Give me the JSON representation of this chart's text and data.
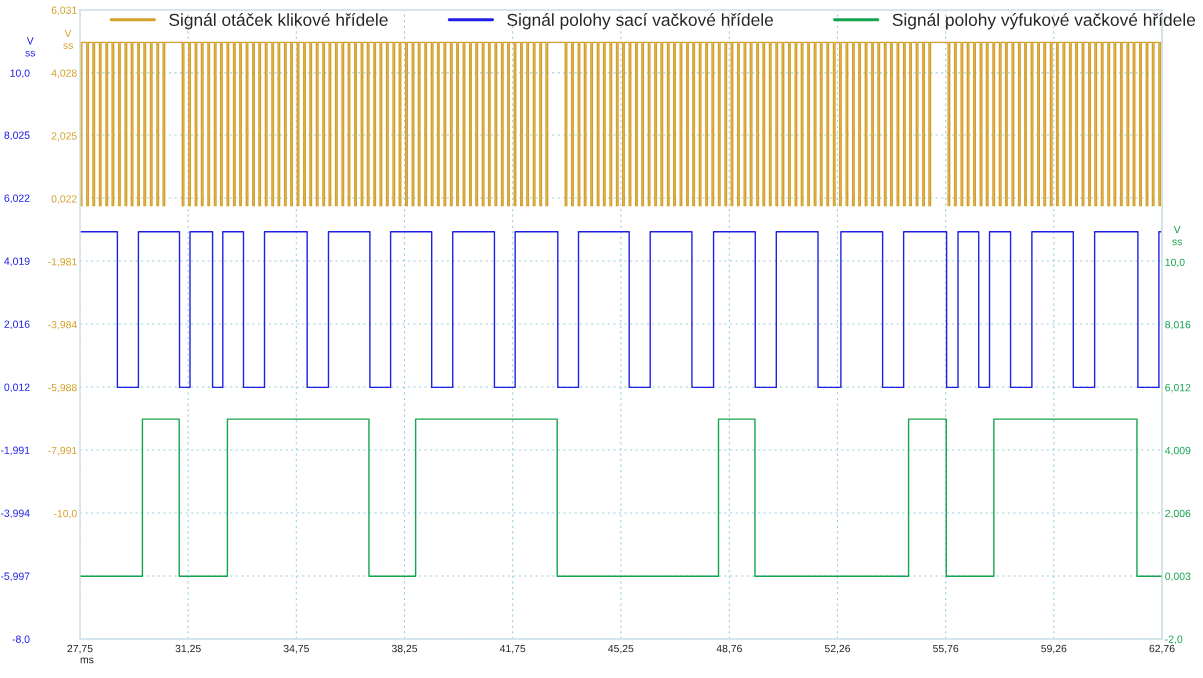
{
  "chart_data": {
    "type": "step",
    "legend": "top",
    "grid": true,
    "xlabel": "ms",
    "ylabel": "V\nss",
    "y2label": "V\nss",
    "y3label": "V\nss",
    "xlim": [
      27.75,
      62.76
    ],
    "xticks": [
      {
        "value": 27.75,
        "label": "27,75"
      },
      {
        "value": 31.25,
        "label": "31,25"
      },
      {
        "value": 34.75,
        "label": "34,75"
      },
      {
        "value": 38.25,
        "label": "38,25"
      },
      {
        "value": 41.75,
        "label": "41,75"
      },
      {
        "value": 45.25,
        "label": "45,25"
      },
      {
        "value": 48.76,
        "label": "48,76"
      },
      {
        "value": 52.26,
        "label": "52,26"
      },
      {
        "value": 55.76,
        "label": "55,76"
      },
      {
        "value": 59.26,
        "label": "59,26"
      },
      {
        "value": 62.76,
        "label": "62,76"
      }
    ],
    "ylim": [
      -8.0,
      12.0
    ],
    "yticks": [
      {
        "value": 10.0,
        "label": "10,0"
      },
      {
        "value": 8.025,
        "label": "8,025"
      },
      {
        "value": 6.022,
        "label": "6,022"
      },
      {
        "value": 4.019,
        "label": "4,019"
      },
      {
        "value": 2.016,
        "label": "2,016"
      },
      {
        "value": 0.012,
        "label": "0,012"
      },
      {
        "value": -1.991,
        "label": "-1,991"
      },
      {
        "value": -3.994,
        "label": "-3,994"
      },
      {
        "value": -5.997,
        "label": "-5,997"
      },
      {
        "value": -8.0,
        "label": "-8,0"
      }
    ],
    "y2lim": [
      -14.0,
      6.031
    ],
    "y2ticks": [
      {
        "value": 6.031,
        "label": "6,031"
      },
      {
        "value": 4.028,
        "label": "4,028"
      },
      {
        "value": 2.025,
        "label": "2,025"
      },
      {
        "value": 0.022,
        "label": "0,022"
      },
      {
        "value": -1.981,
        "label": "-1,981"
      },
      {
        "value": -3.984,
        "label": "-3,984"
      },
      {
        "value": -5.988,
        "label": "-5,988"
      },
      {
        "value": -7.991,
        "label": "-7,991"
      },
      {
        "value": -10.0,
        "label": "-10,0"
      }
    ],
    "y3lim": [
      -2.0,
      18.03
    ],
    "y3ticks": [
      {
        "value": 10.0,
        "label": "10,0"
      },
      {
        "value": 8.016,
        "label": "8,016"
      },
      {
        "value": 6.012,
        "label": "6,012"
      },
      {
        "value": 4.009,
        "label": "4,009"
      },
      {
        "value": 2.006,
        "label": "2,006"
      },
      {
        "value": 0.003,
        "label": "0,003"
      },
      {
        "value": -2.0,
        "label": "-2,0"
      }
    ],
    "series": [
      {
        "name": "Signál otáček klikové hřídele",
        "color": "#d4a02a",
        "axis": "y2",
        "x": [
          27.75,
          27.76,
          27.81,
          27.97,
          28.02,
          28.17,
          28.22,
          28.38,
          28.43,
          28.59,
          28.64,
          28.79,
          28.84,
          29.0,
          29.05,
          29.21,
          29.26,
          29.41,
          29.46,
          29.62,
          29.67,
          29.82,
          29.87,
          30.03,
          30.08,
          30.24,
          30.29,
          30.44,
          30.49,
          31.06,
          31.11,
          31.27,
          31.32,
          31.48,
          31.53,
          31.68,
          31.73,
          31.89,
          31.94,
          32.1,
          32.15,
          32.3,
          32.35,
          32.51,
          32.56,
          32.72,
          32.77,
          32.92,
          32.97,
          33.13,
          33.18,
          33.34,
          33.39,
          33.54,
          33.59,
          33.75,
          33.8,
          33.96,
          34.01,
          34.16,
          34.21,
          34.37,
          34.42,
          34.57,
          34.62,
          34.78,
          34.83,
          34.99,
          35.04,
          35.19,
          35.24,
          35.4,
          35.45,
          35.61,
          35.66,
          35.81,
          35.86,
          36.02,
          36.07,
          36.23,
          36.28,
          36.43,
          36.48,
          36.64,
          36.69,
          36.85,
          36.9,
          37.05,
          37.1,
          37.26,
          37.31,
          37.46,
          37.51,
          37.67,
          37.72,
          37.88,
          37.93,
          38.08,
          38.13,
          38.29,
          38.34,
          38.5,
          38.55,
          38.7,
          38.75,
          38.91,
          38.96,
          39.12,
          39.17,
          39.32,
          39.37,
          39.53,
          39.58,
          39.74,
          39.79,
          39.94,
          39.99,
          40.15,
          40.2,
          40.36,
          40.41,
          40.56,
          40.61,
          40.77,
          40.82,
          40.97,
          41.02,
          41.18,
          41.23,
          41.39,
          41.44,
          41.59,
          41.64,
          41.8,
          41.85,
          42.01,
          42.06,
          42.21,
          42.26,
          42.42,
          42.47,
          42.63,
          42.68,
          42.83,
          42.88,
          43.45,
          43.5,
          43.66,
          43.71,
          43.87,
          43.92,
          44.07,
          44.12,
          44.28,
          44.33,
          44.49,
          44.54,
          44.69,
          44.74,
          44.9,
          44.95,
          45.11,
          45.16,
          45.31,
          45.36,
          45.52,
          45.57,
          45.73,
          45.78,
          45.93,
          45.98,
          46.14,
          46.19,
          46.35,
          46.4,
          46.55,
          46.6,
          46.76,
          46.81,
          46.96,
          47.01,
          47.17,
          47.22,
          47.38,
          47.43,
          47.58,
          47.63,
          47.79,
          47.84,
          48.0,
          48.05,
          48.2,
          48.25,
          48.41,
          48.46,
          48.62,
          48.67,
          48.82,
          48.87,
          49.03,
          49.08,
          49.24,
          49.29,
          49.44,
          49.49,
          49.65,
          49.7,
          49.85,
          49.9,
          50.06,
          50.11,
          50.27,
          50.32,
          50.47,
          50.52,
          50.68,
          50.73,
          50.89,
          50.94,
          51.09,
          51.14,
          51.3,
          51.35,
          51.51,
          51.56,
          51.71,
          51.76,
          51.92,
          51.97,
          52.13,
          52.18,
          52.33,
          52.38,
          52.54,
          52.59,
          52.75,
          52.8,
          52.95,
          53.0,
          53.16,
          53.21,
          53.37,
          53.42,
          53.57,
          53.62,
          53.78,
          53.83,
          53.98,
          54.03,
          54.19,
          54.24,
          54.4,
          54.45,
          54.6,
          54.65,
          54.81,
          54.86,
          55.02,
          55.07,
          55.22,
          55.27,
          55.84,
          55.89,
          56.05,
          56.1,
          56.26,
          56.31,
          56.46,
          56.51,
          56.67,
          56.72,
          56.88,
          56.93,
          57.08,
          57.13,
          57.29,
          57.34,
          57.5,
          57.55,
          57.7,
          57.75,
          57.91,
          57.96,
          58.12,
          58.17,
          58.32,
          58.37,
          58.53,
          58.58,
          58.74,
          58.79,
          58.94,
          58.99,
          59.15,
          59.2,
          59.35,
          59.4,
          59.56,
          59.61,
          59.77,
          59.82,
          59.97,
          60.02,
          60.18,
          60.23,
          60.39,
          60.44,
          60.59,
          60.64,
          60.8,
          60.85,
          61.01,
          61.06,
          61.21,
          61.26,
          61.42,
          61.47,
          61.63,
          61.68,
          61.83,
          61.88,
          62.04,
          62.09,
          62.25,
          62.3,
          62.45,
          62.5,
          62.66,
          62.71,
          62.76
        ],
        "values": [
          5.0,
          -0.2,
          5.0,
          -0.2,
          5.0,
          -0.2,
          5.0,
          -0.2,
          5.0,
          -0.2,
          5.0,
          -0.2,
          5.0,
          -0.2,
          5.0,
          -0.2,
          5.0,
          -0.2,
          5.0,
          -0.2,
          5.0,
          -0.2,
          5.0,
          -0.2,
          5.0,
          -0.2,
          5.0,
          -0.2,
          5.0,
          -0.2,
          5.0,
          -0.2,
          5.0,
          -0.2,
          5.0,
          -0.2,
          5.0,
          -0.2,
          5.0,
          -0.2,
          5.0,
          -0.2,
          5.0,
          -0.2,
          5.0,
          -0.2,
          5.0,
          -0.2,
          5.0,
          -0.2,
          5.0,
          -0.2,
          5.0,
          -0.2,
          5.0,
          -0.2,
          5.0,
          -0.2,
          5.0,
          -0.2,
          5.0,
          -0.2,
          5.0,
          -0.2,
          5.0,
          -0.2,
          5.0,
          -0.2,
          5.0,
          -0.2,
          5.0,
          -0.2,
          5.0,
          -0.2,
          5.0,
          -0.2,
          5.0,
          -0.2,
          5.0,
          -0.2,
          5.0,
          -0.2,
          5.0,
          -0.2,
          5.0,
          -0.2,
          5.0,
          -0.2,
          5.0,
          -0.2,
          5.0,
          -0.2,
          5.0,
          -0.2,
          5.0,
          -0.2,
          5.0,
          -0.2,
          5.0,
          -0.2,
          5.0,
          -0.2,
          5.0,
          -0.2,
          5.0,
          -0.2,
          5.0,
          -0.2,
          5.0,
          -0.2,
          5.0,
          -0.2,
          5.0,
          -0.2,
          5.0,
          -0.2,
          5.0,
          -0.2,
          5.0,
          -0.2,
          5.0,
          -0.2,
          5.0,
          -0.2,
          5.0,
          -0.2,
          5.0,
          -0.2,
          5.0,
          -0.2,
          5.0,
          -0.2,
          5.0,
          -0.2,
          5.0,
          -0.2,
          5.0,
          -0.2,
          5.0,
          -0.2,
          5.0,
          -0.2,
          5.0,
          -0.2,
          5.0,
          -0.2,
          5.0,
          -0.2,
          5.0,
          -0.2,
          5.0,
          -0.2,
          5.0,
          -0.2,
          5.0,
          -0.2,
          5.0,
          -0.2,
          5.0,
          -0.2,
          5.0,
          -0.2,
          5.0,
          -0.2,
          5.0,
          -0.2,
          5.0,
          -0.2,
          5.0,
          -0.2,
          5.0,
          -0.2,
          5.0,
          -0.2,
          5.0,
          -0.2,
          5.0,
          -0.2,
          5.0,
          -0.2,
          5.0,
          -0.2,
          5.0,
          -0.2,
          5.0,
          -0.2,
          5.0,
          -0.2,
          5.0,
          -0.2,
          5.0,
          -0.2,
          5.0,
          -0.2,
          5.0,
          -0.2,
          5.0,
          -0.2,
          5.0,
          -0.2,
          5.0,
          -0.2,
          5.0,
          -0.2,
          5.0,
          -0.2,
          5.0,
          -0.2,
          5.0,
          -0.2,
          5.0,
          -0.2,
          5.0,
          -0.2,
          5.0,
          -0.2,
          5.0,
          -0.2,
          5.0,
          -0.2,
          5.0,
          -0.2,
          5.0,
          -0.2,
          5.0,
          -0.2,
          5.0,
          -0.2,
          5.0,
          -0.2,
          5.0,
          -0.2,
          5.0,
          -0.2,
          5.0,
          -0.2,
          5.0,
          -0.2,
          5.0,
          -0.2,
          5.0,
          -0.2,
          5.0,
          -0.2,
          5.0,
          -0.2,
          5.0,
          -0.2,
          5.0,
          -0.2,
          5.0,
          -0.2,
          5.0,
          -0.2,
          5.0,
          -0.2,
          5.0,
          -0.2,
          5.0,
          -0.2,
          5.0,
          -0.2,
          5.0,
          -0.2,
          5.0,
          -0.2,
          5.0,
          -0.2,
          5.0,
          -0.2,
          5.0,
          -0.2,
          5.0,
          -0.2,
          5.0,
          -0.2,
          5.0,
          -0.2,
          5.0,
          -0.2,
          5.0,
          -0.2,
          5.0,
          -0.2,
          5.0,
          -0.2,
          5.0,
          -0.2,
          5.0,
          -0.2,
          5.0,
          -0.2,
          5.0,
          -0.2,
          5.0,
          -0.2,
          5.0,
          -0.2,
          5.0,
          -0.2,
          5.0,
          -0.2,
          5.0,
          -0.2,
          5.0,
          -0.2,
          5.0,
          -0.2,
          5.0,
          -0.2,
          5.0,
          -0.2,
          5.0,
          -0.2,
          5.0,
          -0.2,
          5.0,
          -0.2,
          5.0,
          -0.2,
          5.0,
          -0.2,
          5.0,
          -0.2,
          5.0,
          -0.2,
          5.0,
          -0.2,
          5.0,
          5.0
        ]
      },
      {
        "name": "Signál polohy sací vačkové hřídele",
        "color": "#1f1fe6",
        "axis": "y",
        "x": [
          27.75,
          28.96,
          29.64,
          30.97,
          31.31,
          32.04,
          32.37,
          33.04,
          33.72,
          35.1,
          35.79,
          37.13,
          37.8,
          39.13,
          39.81,
          41.16,
          41.83,
          43.21,
          43.88,
          45.52,
          46.2,
          47.55,
          48.25,
          49.6,
          50.28,
          51.63,
          52.37,
          53.72,
          54.4,
          55.79,
          56.16,
          56.83,
          57.18,
          57.86,
          58.55,
          59.89,
          60.58,
          61.98,
          62.66,
          62.76
        ],
        "values": [
          4.95,
          0.0,
          4.95,
          0.0,
          4.95,
          0.0,
          4.95,
          0.0,
          4.95,
          0.0,
          4.95,
          0.0,
          4.95,
          0.0,
          4.95,
          0.0,
          4.95,
          0.0,
          4.95,
          0.0,
          4.95,
          0.0,
          4.95,
          0.0,
          4.95,
          0.0,
          4.95,
          0.0,
          4.95,
          0.0,
          4.95,
          0.0,
          4.95,
          0.0,
          4.95,
          0.0,
          4.95,
          0.0,
          4.95,
          4.95
        ]
      },
      {
        "name": "Signál polohy výfukové vačkové hřídele",
        "color": "#16a34f",
        "axis": "y3",
        "x": [
          27.75,
          29.77,
          30.96,
          32.52,
          37.1,
          38.61,
          43.19,
          48.41,
          49.59,
          54.56,
          55.78,
          57.32,
          61.95,
          62.76
        ],
        "values": [
          0.0,
          5.0,
          0.0,
          5.0,
          0.0,
          5.0,
          0.0,
          5.0,
          0.0,
          5.0,
          0.0,
          5.0,
          0.0,
          0.0
        ]
      }
    ]
  }
}
